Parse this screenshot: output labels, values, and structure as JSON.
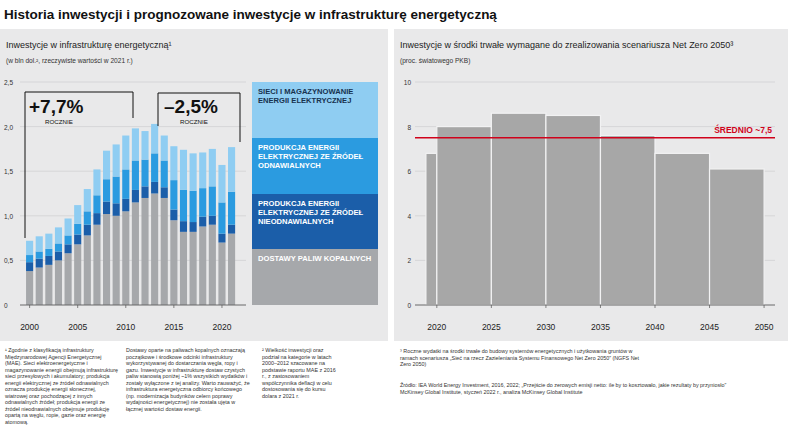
{
  "title": "Historia inwestycji i prognozowane inwestycje w infrastrukturę energetyczną",
  "chart_data": [
    {
      "type": "bar",
      "stacked": true,
      "title": "Inwestycje w infrastrukturę energetyczną¹",
      "subtitle": "(w bln dol.², rzeczywiste wartości w 2021 r.)",
      "x": [
        2000,
        2001,
        2002,
        2003,
        2004,
        2005,
        2006,
        2007,
        2008,
        2009,
        2010,
        2011,
        2012,
        2013,
        2014,
        2015,
        2016,
        2017,
        2018,
        2019,
        2020,
        2021
      ],
      "xlim": [
        1999,
        2022.5
      ],
      "xticks": [
        2000,
        2005,
        2010,
        2015,
        2020
      ],
      "ylim": [
        0,
        2.5
      ],
      "yticks": [
        0,
        {
          "value": 0.5,
          "label": "0,5"
        },
        {
          "value": 1,
          "label": "1,0"
        },
        {
          "value": 1.5,
          "label": "1,5"
        },
        {
          "value": 2,
          "label": "2,0"
        },
        {
          "value": 2.5,
          "label": "2,5"
        }
      ],
      "grid": true,
      "legend": "right",
      "series": [
        {
          "name": "DOSTAWY PALIW KOPALNYCH",
          "color": "#a6a8ab",
          "values": [
            0.38,
            0.42,
            0.45,
            0.5,
            0.58,
            0.68,
            0.78,
            0.9,
            1.02,
            1.0,
            1.05,
            1.15,
            1.2,
            1.25,
            1.2,
            0.95,
            0.82,
            0.82,
            0.88,
            0.9,
            0.7,
            0.8
          ]
        },
        {
          "name": "PRODUKCJA ENERGII ELEKTRYCZNEJ ZE ŹRÓDEŁ NIEODNAWIALNYCH",
          "color": "#1b5ea9",
          "values": [
            0.1,
            0.1,
            0.1,
            0.1,
            0.1,
            0.11,
            0.12,
            0.13,
            0.14,
            0.14,
            0.14,
            0.14,
            0.13,
            0.13,
            0.12,
            0.12,
            0.12,
            0.11,
            0.11,
            0.1,
            0.1,
            0.1
          ]
        },
        {
          "name": "PRODUKCJA ENERGII ELEKTRYCZNEJ ZE ŹRÓDEŁ ODNAWIALNYCH",
          "color": "#2b9be0",
          "values": [
            0.08,
            0.08,
            0.08,
            0.09,
            0.1,
            0.12,
            0.15,
            0.2,
            0.25,
            0.3,
            0.33,
            0.33,
            0.3,
            0.32,
            0.3,
            0.33,
            0.35,
            0.35,
            0.32,
            0.33,
            0.35,
            0.37
          ]
        },
        {
          "name": "SIECI I MAGAZYNOWANIE ENERGII ELEKTRYCZNEJ",
          "color": "#8fcdf2",
          "values": [
            0.16,
            0.17,
            0.17,
            0.18,
            0.19,
            0.21,
            0.25,
            0.29,
            0.32,
            0.36,
            0.38,
            0.36,
            0.32,
            0.33,
            0.28,
            0.38,
            0.45,
            0.42,
            0.4,
            0.42,
            0.42,
            0.5
          ]
        }
      ],
      "annotations": [
        {
          "text": "+7,7%",
          "label": "ROCZNIE"
        },
        {
          "text": "–2,5%",
          "label": "ROCZNIE"
        }
      ]
    },
    {
      "type": "histogram",
      "title": "Inwestycje w środki trwałe wymagane do zrealizowania scenariusza Net Zero 2050³",
      "subtitle": "(proc. światowego PKB)",
      "bins": [
        2019,
        2020,
        2025,
        2030,
        2035,
        2040,
        2045,
        2050
      ],
      "values": [
        6.8,
        8,
        8.6,
        8.5,
        7.6,
        6.8,
        6.1
      ],
      "color": "#a7a7a7",
      "xlim": [
        2018,
        2051
      ],
      "xticks": [
        2020,
        2025,
        2030,
        2035,
        2040,
        2045,
        2050
      ],
      "ylim": [
        0,
        10
      ],
      "yticks": [
        0,
        2,
        4,
        6,
        8,
        10
      ],
      "grid": true,
      "reference_line": {
        "value": 7.5,
        "label": "ŚREDNIO ~7,5",
        "color": "#d0021b"
      }
    }
  ],
  "notes": {
    "left": [
      "¹ Zgodnie z klasyfikacją infrastruktury Międzynarodowej Agencji Energetycznej (MAE). Sieci elektroenergetyczne i magazynowanie energii obejmują infrastrukturę sieci przesyłowych i akumulatory; produkcja energii elektrycznej ze źródeł odnawialnych oznacza produkcję energii słonecznej, wiatrowej oraz pochodzącej z innych odnawialnych źródeł; produkcja energii ze źródeł nieodnawialnych obejmuje produkcję opartą na węglu, ropie, gazie oraz energię atomową.",
      "Dostawy oparte na paliwach kopalnych oznaczają początkowe i środkowe odcinki infrastruktury wykorzystywanej do dostarczania węgla, ropy i gazu. Inwestycje w infrastrukturę dostaw czystych paliw stanowią poniżej ~1% wszystkich wydatków i zostały wyłączone z tej analizy. Warto zauważyć, że infrastruktura energetyczna odbiorcy końcowego (np. modernizacja budynków celem poprawy wydajności energetycznej) nie została ujęta w łącznej wartości dostaw energii.",
      "² Wielkość inwestycji oraz podział na kategorie w latach 2000–2012 szacowane na podstawie raportu MAE z 2016 r., z zastosowaniem współczynnika deflacji w celu dostosowania się do kursu dolara z 2021 r."
    ],
    "right": "³ Roczne wydatki na środki trwałe do budowy systemów energetycznych i użytkowania gruntów w ramach scenariusza „Sieć na rzecz Zazieleniania Systemu Finansowego Net Zero 2050” (NGFS Net Zero 2050)",
    "source": "Źródło: IEA World Energy Investment, 2016, 2022; „Przejście do zerowych emisji netto: ile by to kosztowało, jakie rezultaty by przyniosło” McKinsey Global Institute, styczeń 2022 r., analiza McKinsey Global Institute"
  }
}
